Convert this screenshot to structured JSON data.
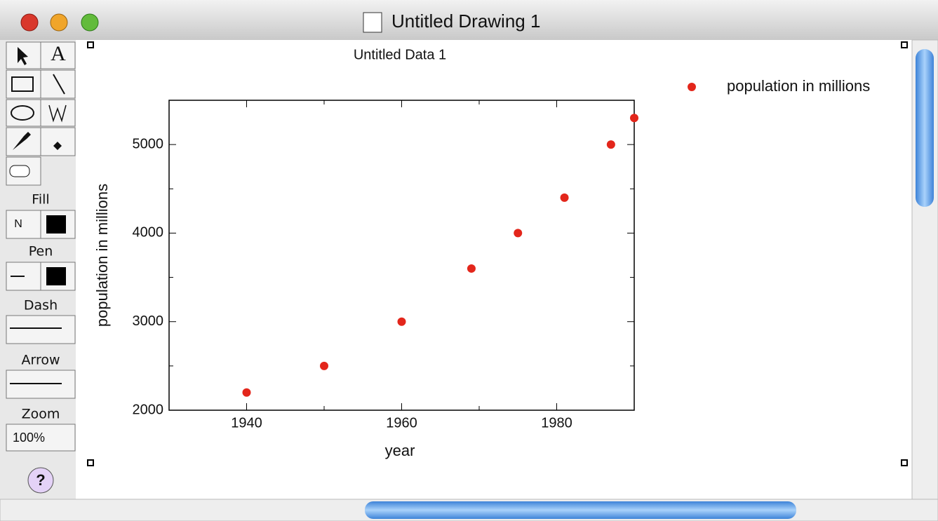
{
  "window": {
    "title": "Untitled Drawing 1"
  },
  "toolbar": {
    "text_tool": "A",
    "fill_label": "Fill",
    "fill_mode": "N",
    "pen_label": "Pen",
    "dash_label": "Dash",
    "arrow_label": "Arrow",
    "zoom_label": "Zoom",
    "zoom_value": "100%",
    "help": "?"
  },
  "chart_data": {
    "type": "scatter",
    "title": "Untitled Data 1",
    "xlabel": "year",
    "ylabel": "population in millions",
    "series": [
      {
        "name": "population in millions",
        "color": "#e3261b",
        "x": [
          1940,
          1950,
          1960,
          1969,
          1975,
          1981,
          1987,
          1990
        ],
        "values": [
          2200,
          2500,
          3000,
          3600,
          4000,
          4400,
          5000,
          5300
        ]
      }
    ],
    "xlim": [
      1930,
      1990
    ],
    "xticks": [
      1940,
      1960,
      1980
    ],
    "xminor_ticks": [
      1930,
      1950,
      1970,
      1990
    ],
    "ylim": [
      2000,
      5500
    ],
    "yticks": [
      2000,
      3000,
      4000,
      5000
    ],
    "yminor_ticks": [
      2500,
      3500,
      4500,
      5500
    ],
    "legend": "top-right",
    "grid": false
  }
}
